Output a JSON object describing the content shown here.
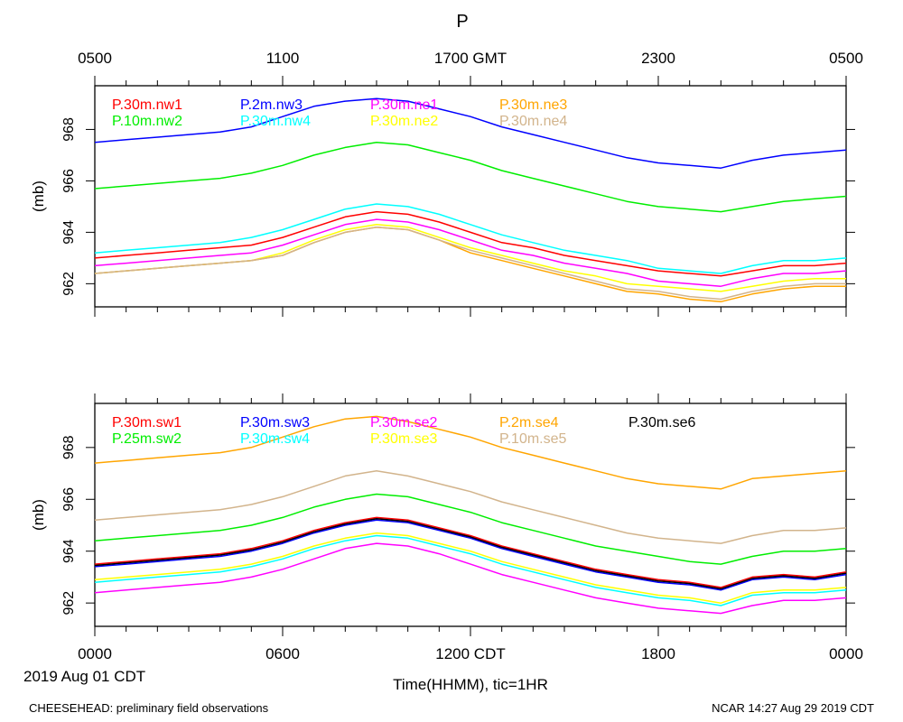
{
  "title": "P",
  "top_axis": {
    "tick_labels": [
      "0500",
      "1100",
      "1700 GMT",
      "2300",
      "0500"
    ],
    "tick_hours": [
      0,
      6,
      12,
      18,
      24
    ]
  },
  "bottom_axis": {
    "tick_labels": [
      "0000",
      "0600",
      "1200 CDT",
      "1800",
      "0000"
    ],
    "tick_hours": [
      0,
      6,
      12,
      18,
      24
    ],
    "xlabel": "Time(HHMM), tic=1HR",
    "date_label": "2019 Aug 01 CDT"
  },
  "footer": {
    "left": "CHEESEHEAD: preliminary field observations",
    "right": "NCAR 14:27 Aug 29 2019 CDT"
  },
  "chart_data": [
    {
      "type": "line",
      "ylabel": "(mb)",
      "xlim": [
        0,
        24
      ],
      "ylim": [
        961.1,
        969.7
      ],
      "yticks": [
        962,
        964,
        966,
        968
      ],
      "x": [
        0,
        1,
        2,
        3,
        4,
        5,
        6,
        7,
        8,
        9,
        10,
        11,
        12,
        13,
        14,
        15,
        16,
        17,
        18,
        19,
        20,
        21,
        22,
        23,
        24
      ],
      "series": [
        {
          "name": "P.30m.nw1",
          "color": "#ff0000",
          "values": [
            963.0,
            963.1,
            963.2,
            963.3,
            963.4,
            963.5,
            963.8,
            964.2,
            964.6,
            964.8,
            964.7,
            964.4,
            964.0,
            963.6,
            963.4,
            963.1,
            962.9,
            962.7,
            962.5,
            962.4,
            962.3,
            962.5,
            962.7,
            962.7,
            962.8
          ]
        },
        {
          "name": "P.10m.nw2",
          "color": "#00ee00",
          "values": [
            965.7,
            965.8,
            965.9,
            966.0,
            966.1,
            966.3,
            966.6,
            967.0,
            967.3,
            967.5,
            967.4,
            967.1,
            966.8,
            966.4,
            966.1,
            965.8,
            965.5,
            965.2,
            965.0,
            964.9,
            964.8,
            965.0,
            965.2,
            965.3,
            965.4
          ]
        },
        {
          "name": "P.2m.nw3",
          "color": "#0000ff",
          "values": [
            967.5,
            967.6,
            967.7,
            967.8,
            967.9,
            968.1,
            968.5,
            968.9,
            969.1,
            969.2,
            969.1,
            968.8,
            968.5,
            968.1,
            967.8,
            967.5,
            967.2,
            966.9,
            966.7,
            966.6,
            966.5,
            966.8,
            967.0,
            967.1,
            967.2
          ]
        },
        {
          "name": "P.30m.nw4",
          "color": "#00ffff",
          "values": [
            963.2,
            963.3,
            963.4,
            963.5,
            963.6,
            963.8,
            964.1,
            964.5,
            964.9,
            965.1,
            965.0,
            964.7,
            964.3,
            963.9,
            963.6,
            963.3,
            963.1,
            962.9,
            962.6,
            962.5,
            962.4,
            962.7,
            962.9,
            962.9,
            963.0
          ]
        },
        {
          "name": "P.30m.ne1",
          "color": "#ff00ff",
          "values": [
            962.7,
            962.8,
            962.9,
            963.0,
            963.1,
            963.2,
            963.5,
            963.9,
            964.3,
            964.5,
            964.4,
            964.1,
            963.7,
            963.3,
            963.1,
            962.8,
            962.6,
            962.4,
            962.1,
            962.0,
            961.9,
            962.2,
            962.4,
            962.4,
            962.5
          ]
        },
        {
          "name": "P.30m.ne2",
          "color": "#ffff00",
          "values": [
            962.4,
            962.5,
            962.6,
            962.7,
            962.8,
            962.9,
            963.2,
            963.7,
            964.1,
            964.3,
            964.2,
            963.8,
            963.4,
            963.1,
            962.8,
            962.5,
            962.3,
            962.0,
            961.9,
            961.8,
            961.7,
            961.9,
            962.1,
            962.2,
            962.2
          ]
        },
        {
          "name": "P.30m.ne3",
          "color": "#ffa500",
          "values": [
            962.4,
            962.5,
            962.6,
            962.7,
            962.8,
            962.9,
            963.1,
            963.6,
            964.0,
            964.2,
            964.1,
            963.7,
            963.2,
            962.9,
            962.6,
            962.3,
            962.0,
            961.7,
            961.6,
            961.4,
            961.3,
            961.6,
            961.8,
            961.9,
            961.9
          ]
        },
        {
          "name": "P.30m.ne4",
          "color": "#d2b48c",
          "values": [
            962.4,
            962.5,
            962.6,
            962.7,
            962.8,
            962.9,
            963.1,
            963.6,
            964.0,
            964.2,
            964.1,
            963.7,
            963.3,
            963.0,
            962.7,
            962.4,
            962.1,
            961.8,
            961.7,
            961.5,
            961.4,
            961.7,
            961.9,
            962.0,
            962.0
          ]
        }
      ]
    },
    {
      "type": "line",
      "ylabel": "(mb)",
      "xlim": [
        0,
        24
      ],
      "ylim": [
        961.1,
        969.7
      ],
      "yticks": [
        962,
        964,
        966,
        968
      ],
      "x": [
        0,
        1,
        2,
        3,
        4,
        5,
        6,
        7,
        8,
        9,
        10,
        11,
        12,
        13,
        14,
        15,
        16,
        17,
        18,
        19,
        20,
        21,
        22,
        23,
        24
      ],
      "series": [
        {
          "name": "P.30m.sw1",
          "color": "#ff0000",
          "values": [
            963.5,
            963.6,
            963.7,
            963.8,
            963.9,
            964.1,
            964.4,
            964.8,
            965.1,
            965.3,
            965.2,
            964.9,
            964.6,
            964.2,
            963.9,
            963.6,
            963.3,
            963.1,
            962.9,
            962.8,
            962.6,
            963.0,
            963.1,
            963.0,
            963.2
          ]
        },
        {
          "name": "P.25m.sw2",
          "color": "#00ee00",
          "values": [
            964.4,
            964.5,
            964.6,
            964.7,
            964.8,
            965.0,
            965.3,
            965.7,
            966.0,
            966.2,
            966.1,
            965.8,
            965.5,
            965.1,
            964.8,
            964.5,
            964.2,
            964.0,
            963.8,
            963.6,
            963.5,
            963.8,
            964.0,
            964.0,
            964.1
          ]
        },
        {
          "name": "P.30m.sw3",
          "color": "#0000ff",
          "values": [
            963.4,
            963.5,
            963.6,
            963.7,
            963.8,
            964.0,
            964.3,
            964.7,
            965.0,
            965.2,
            965.1,
            964.8,
            964.5,
            964.1,
            963.8,
            963.5,
            963.2,
            963.0,
            962.8,
            962.7,
            962.5,
            962.9,
            963.0,
            962.9,
            963.1
          ]
        },
        {
          "name": "P.30m.sw4",
          "color": "#00ffff",
          "values": [
            962.8,
            962.9,
            963.0,
            963.1,
            963.2,
            963.4,
            963.7,
            964.1,
            964.4,
            964.6,
            964.5,
            964.2,
            963.9,
            963.5,
            963.2,
            962.9,
            962.6,
            962.4,
            962.2,
            962.1,
            961.9,
            962.3,
            962.4,
            962.4,
            962.5
          ]
        },
        {
          "name": "P.30m.se2",
          "color": "#ff00ff",
          "values": [
            962.4,
            962.5,
            962.6,
            962.7,
            962.8,
            963.0,
            963.3,
            963.7,
            964.1,
            964.3,
            964.2,
            963.9,
            963.5,
            963.1,
            962.8,
            962.5,
            962.2,
            962.0,
            961.8,
            961.7,
            961.6,
            961.9,
            962.1,
            962.1,
            962.2
          ]
        },
        {
          "name": "P.30m.se3",
          "color": "#ffff00",
          "values": [
            962.9,
            963.0,
            963.1,
            963.2,
            963.3,
            963.5,
            963.8,
            964.2,
            964.5,
            964.7,
            964.6,
            964.3,
            964.0,
            963.6,
            963.3,
            963.0,
            962.7,
            962.5,
            962.3,
            962.2,
            962.0,
            962.4,
            962.5,
            962.5,
            962.6
          ]
        },
        {
          "name": "P.2m.se4",
          "color": "#ffa500",
          "values": [
            967.4,
            967.5,
            967.6,
            967.7,
            967.8,
            968.0,
            968.4,
            968.8,
            969.1,
            969.2,
            969.0,
            968.7,
            968.4,
            968.0,
            967.7,
            967.4,
            967.1,
            966.8,
            966.6,
            966.5,
            966.4,
            966.8,
            966.9,
            967.0,
            967.1
          ]
        },
        {
          "name": "P.10m.se5",
          "color": "#d2b48c",
          "values": [
            965.2,
            965.3,
            965.4,
            965.5,
            965.6,
            965.8,
            966.1,
            966.5,
            966.9,
            967.1,
            966.9,
            966.6,
            966.3,
            965.9,
            965.6,
            965.3,
            965.0,
            964.7,
            964.5,
            964.4,
            964.3,
            964.6,
            964.8,
            964.8,
            964.9
          ]
        },
        {
          "name": "P.30m.se6",
          "color": "#000000",
          "values": [
            963.45,
            963.55,
            963.65,
            963.75,
            963.85,
            964.05,
            964.35,
            964.75,
            965.05,
            965.25,
            965.15,
            964.85,
            964.55,
            964.15,
            963.85,
            963.55,
            963.25,
            963.05,
            962.85,
            962.75,
            962.55,
            962.95,
            963.05,
            962.95,
            963.15
          ]
        }
      ]
    }
  ]
}
